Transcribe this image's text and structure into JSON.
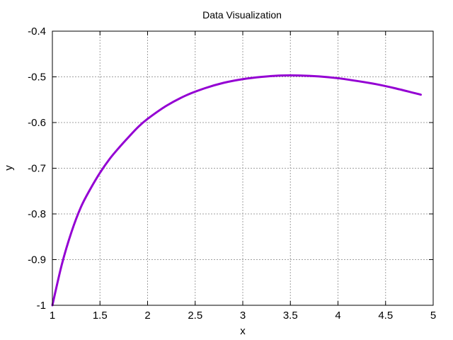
{
  "chart_data": {
    "type": "line",
    "title": "Data Visualization",
    "xlabel": "x",
    "ylabel": "y",
    "xlim": [
      1,
      5
    ],
    "ylim": [
      -1,
      -0.4
    ],
    "xticks": [
      1,
      1.5,
      2,
      2.5,
      3,
      3.5,
      4,
      4.5,
      5
    ],
    "xtick_labels": [
      "1",
      "1.5",
      "2",
      "2.5",
      "3",
      "3.5",
      "4",
      "4.5",
      "5"
    ],
    "yticks": [
      -1,
      -0.9,
      -0.8,
      -0.7,
      -0.6,
      -0.5,
      -0.4
    ],
    "ytick_labels": [
      "-1",
      "-0.9",
      "-0.8",
      "-0.7",
      "-0.6",
      "-0.5",
      "-0.4"
    ],
    "grid": true,
    "series": [
      {
        "color": "#9400d3",
        "x": [
          1.0,
          1.1,
          1.2,
          1.3,
          1.4,
          1.5,
          1.6,
          1.7,
          1.8,
          1.9,
          2.0,
          2.2,
          2.4,
          2.6,
          2.8,
          3.0,
          3.2,
          3.4,
          3.6,
          3.8,
          4.0,
          4.2,
          4.4,
          4.6,
          4.87
        ],
        "y": [
          -1.0,
          -0.91,
          -0.84,
          -0.785,
          -0.745,
          -0.71,
          -0.68,
          -0.655,
          -0.632,
          -0.61,
          -0.592,
          -0.563,
          -0.541,
          -0.525,
          -0.513,
          -0.505,
          -0.5,
          -0.497,
          -0.497,
          -0.499,
          -0.503,
          -0.509,
          -0.516,
          -0.525,
          -0.539
        ]
      }
    ]
  }
}
